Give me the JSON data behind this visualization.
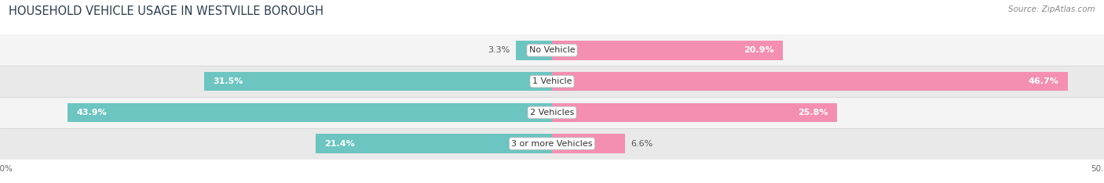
{
  "title": "HOUSEHOLD VEHICLE USAGE IN WESTVILLE BOROUGH",
  "source": "Source: ZipAtlas.com",
  "categories": [
    "No Vehicle",
    "1 Vehicle",
    "2 Vehicles",
    "3 or more Vehicles"
  ],
  "owner_values": [
    3.3,
    31.5,
    43.9,
    21.4
  ],
  "renter_values": [
    20.9,
    46.7,
    25.8,
    6.6
  ],
  "owner_color": "#6cc5c1",
  "renter_color": "#f48fb1",
  "row_bg_light": "#f4f4f4",
  "row_bg_dark": "#e9e9e9",
  "axis_limit": 50.0,
  "bar_height": 0.62,
  "title_fontsize": 10.5,
  "label_fontsize": 8,
  "category_fontsize": 8,
  "source_fontsize": 7.5,
  "legend_fontsize": 8,
  "axis_label_fontsize": 7.5
}
